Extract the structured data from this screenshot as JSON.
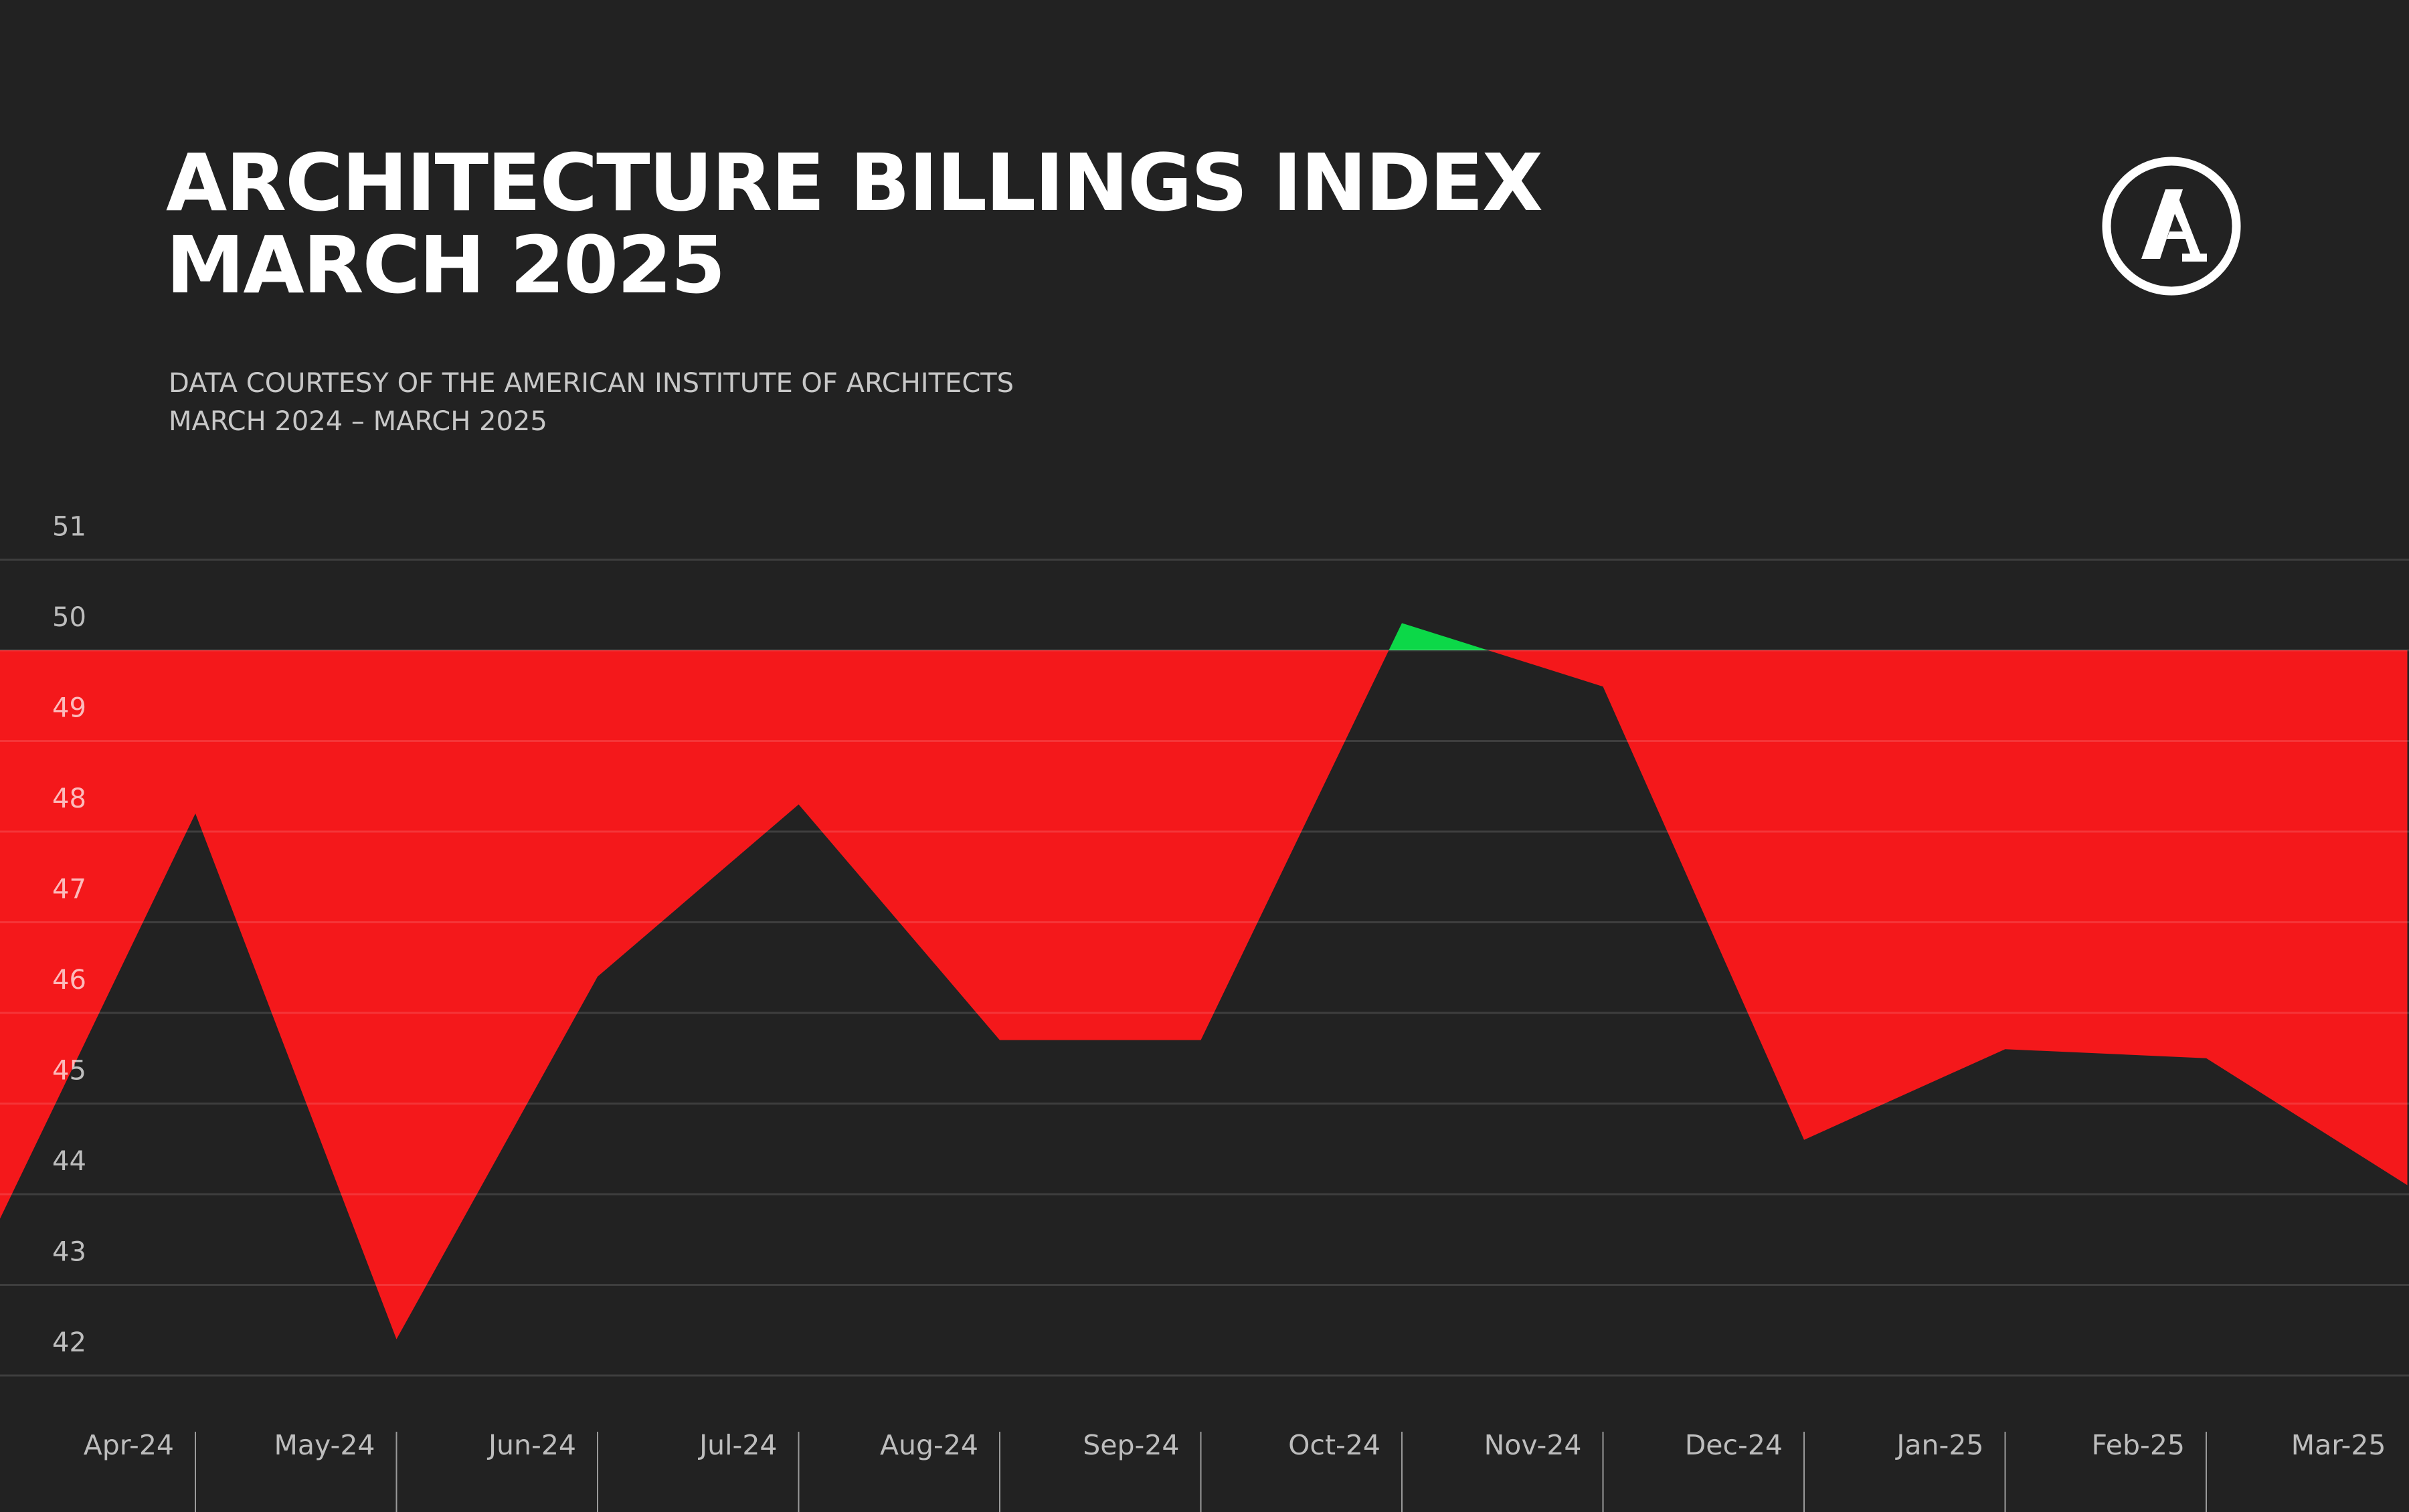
{
  "header": {
    "title_line1": "ARCHITECTURE BILLINGS INDEX",
    "title_line2": "MARCH 2025",
    "subtitle_line1": "DATA COURTESY OF THE AMERICAN INSTITUTE OF ARCHITECTS",
    "subtitle_line2": "MARCH 2024 – MARCH 2025",
    "logo": "A"
  },
  "colors": {
    "background": "#222222",
    "below_50": "#F4181B",
    "above_50": "#0CD848",
    "text": "#FFFFFF"
  },
  "chart_data": {
    "type": "area",
    "title": "",
    "xlabel": "",
    "ylabel": "",
    "baseline": 50,
    "ylim": [
      42,
      51
    ],
    "yticks": [
      "42",
      "43",
      "44",
      "45",
      "46",
      "47",
      "48",
      "49",
      "50",
      "51"
    ],
    "grid": true,
    "x_start_value": 43.6,
    "categories": [
      "Apr-24",
      "May-24",
      "Jun-24",
      "Jul-24",
      "Aug-24",
      "Sep-24",
      "Oct-24",
      "Nov-24",
      "Dec-24",
      "Jan-25",
      "Feb-25",
      "Mar-25"
    ],
    "values": [
      48.2,
      42.4,
      46.4,
      48.3,
      45.7,
      45.7,
      50.3,
      49.6,
      44.6,
      45.6,
      45.5,
      44.1
    ]
  }
}
